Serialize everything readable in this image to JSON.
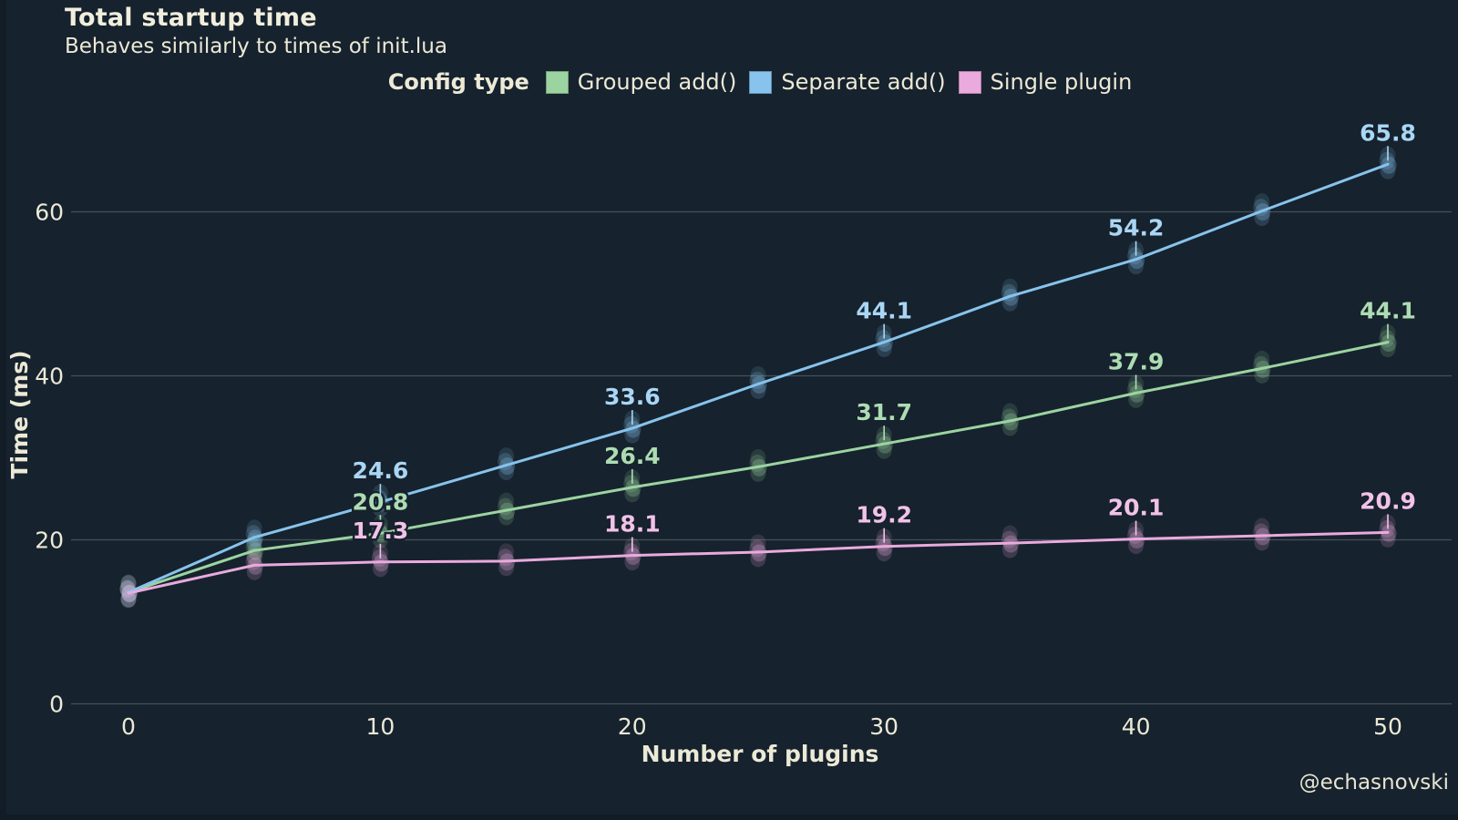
{
  "page": {
    "watermark": "@echasnovski"
  },
  "chart_data": {
    "type": "line",
    "title": "Total startup time",
    "subtitle": "Behaves similarly to times of init.lua",
    "legend_title": "Config type",
    "legend_position": "top-center",
    "xlabel": "Number of plugins",
    "ylabel": "Time (ms)",
    "x_ticks": [
      0,
      10,
      20,
      30,
      40,
      50
    ],
    "y_ticks": [
      0,
      20,
      40,
      60
    ],
    "xlim": [
      0,
      50
    ],
    "ylim": [
      0,
      70
    ],
    "grid": "horizontal-only",
    "background_color": "#16222d",
    "text_color": "#ece9d6",
    "grid_color": "#4d5763",
    "x": [
      0,
      5,
      10,
      15,
      20,
      25,
      30,
      35,
      40,
      45,
      50
    ],
    "series": [
      {
        "name": "Grouped add()",
        "color": "#9bd4a1",
        "label_color": "#addcb2",
        "values": [
          13.6,
          18.7,
          20.8,
          23.6,
          26.4,
          28.9,
          31.7,
          34.5,
          37.9,
          40.9,
          44.1
        ],
        "labels": {
          "10": "20.8",
          "20": "26.4",
          "30": "31.7",
          "40": "37.9",
          "50": "44.1"
        }
      },
      {
        "name": "Separate add()",
        "color": "#87c3ec",
        "label_color": "#a9d6f5",
        "values": [
          13.6,
          20.3,
          24.6,
          29.1,
          33.6,
          39.0,
          44.1,
          49.7,
          54.2,
          60.1,
          65.8
        ],
        "labels": {
          "10": "24.6",
          "20": "33.6",
          "30": "44.1",
          "40": "54.2",
          "50": "65.8"
        }
      },
      {
        "name": "Single plugin",
        "color": "#eaaade",
        "label_color": "#f2c2e9",
        "values": [
          13.5,
          16.9,
          17.3,
          17.4,
          18.1,
          18.5,
          19.2,
          19.6,
          20.1,
          20.5,
          20.9
        ],
        "labels": {
          "10": "17.3",
          "20": "18.1",
          "30": "19.2",
          "40": "20.1",
          "50": "20.9"
        }
      }
    ],
    "watermark": "@echasnovski"
  }
}
